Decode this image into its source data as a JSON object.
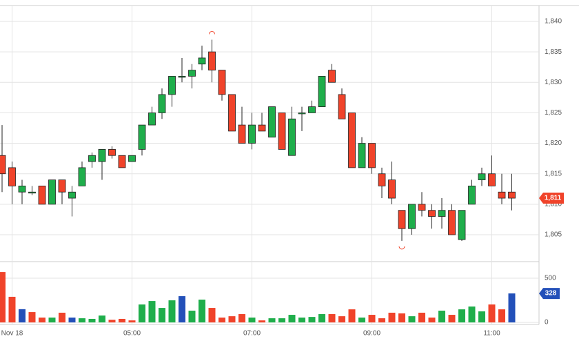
{
  "chart_data": [
    {
      "type": "candlestick",
      "categories": [
        null,
        "Nov 18",
        null,
        null,
        null,
        null,
        null,
        null,
        null,
        null,
        null,
        null,
        null,
        "05:00",
        null,
        null,
        null,
        null,
        null,
        null,
        null,
        null,
        null,
        null,
        null,
        "07:00",
        null,
        null,
        null,
        null,
        null,
        null,
        null,
        null,
        null,
        null,
        null,
        "09:00",
        null,
        null,
        null,
        null,
        null,
        null,
        null,
        null,
        null,
        null,
        null,
        "11:00",
        null,
        null
      ],
      "open": [
        1818,
        1816,
        1812,
        1812,
        1813,
        1810,
        1814,
        1811,
        1813,
        1817,
        1817,
        1819,
        1818,
        1817,
        1819,
        1823,
        1825,
        1828,
        1831,
        1831,
        1833,
        1835,
        1832,
        1828,
        1823,
        1820,
        1823,
        1821,
        1825,
        1818,
        1825,
        1825,
        1826,
        1832,
        1828,
        1825,
        1816,
        1820,
        1815,
        1814,
        1809,
        1806,
        1810,
        1809,
        1808,
        1809,
        1804.2,
        1810,
        1814,
        1815,
        1812,
        1812
      ],
      "high": [
        1823,
        1817,
        1814,
        1813,
        1813,
        1814,
        1814,
        1813,
        1817,
        1818.5,
        1819,
        1819.5,
        1818,
        1818,
        1823,
        1826,
        1829,
        1831,
        1834,
        1833,
        1836,
        1837,
        1832,
        1828,
        1826,
        1825,
        1825,
        1826,
        1825,
        1826,
        1826,
        1827,
        1831,
        1833,
        1829,
        1825,
        1821,
        1820,
        1816,
        1817,
        1809,
        1810,
        1812,
        1810,
        1811,
        1810,
        1809,
        1814,
        1816,
        1818,
        1815,
        1815
      ],
      "low": [
        1812,
        1810,
        1810,
        1811.5,
        1810,
        1810,
        1810,
        1808,
        1813,
        1816,
        1814,
        1817.5,
        1816,
        1817,
        1818,
        1823,
        1824,
        1826,
        1830,
        1829,
        1832,
        1830,
        1827,
        1822,
        1820,
        1819,
        1822,
        1821,
        1819,
        1818,
        1822,
        1825,
        1826,
        1830,
        1824,
        1816,
        1816,
        1815,
        1811,
        1810,
        1804,
        1805,
        1808,
        1806,
        1806,
        1805,
        1804,
        1810,
        1813,
        1813,
        1810,
        1809
      ],
      "close": [
        1815,
        1813,
        1813,
        1812,
        1810,
        1814,
        1812,
        1812,
        1816,
        1818,
        1819,
        1818,
        1816,
        1818,
        1823,
        1825,
        1828,
        1831,
        1831,
        1832,
        1834,
        1832,
        1828,
        1822,
        1820,
        1823,
        1822,
        1826,
        1819,
        1824,
        1825,
        1826,
        1831,
        1830,
        1824,
        1816,
        1820,
        1816,
        1813,
        1811,
        1806,
        1810,
        1809,
        1808,
        1809,
        1805,
        1809,
        1813,
        1815,
        1813,
        1811,
        1811
      ],
      "up_color": "#1fae4b",
      "down_color": "#f0432a",
      "ylim": [
        1800.7,
        1842.6
      ],
      "yticks": [
        {
          "value": 1805,
          "label": "1,805"
        },
        {
          "value": 1810,
          "label": "1,810"
        },
        {
          "value": 1815,
          "label": "1,815"
        },
        {
          "value": 1820,
          "label": "1,820"
        },
        {
          "value": 1825,
          "label": "1,825"
        },
        {
          "value": 1830,
          "label": "1,830"
        },
        {
          "value": 1835,
          "label": "1,835"
        },
        {
          "value": 1840,
          "label": "1,840"
        }
      ],
      "last": {
        "value": 1811,
        "label": "1,811"
      },
      "grid": true
    },
    {
      "type": "bar",
      "values": [
        570,
        290,
        150,
        117,
        55,
        55,
        110,
        55,
        47,
        40,
        78,
        30,
        40,
        23,
        203,
        242,
        164,
        250,
        297,
        133,
        258,
        164,
        55,
        70,
        94,
        55,
        23,
        47,
        47,
        86,
        55,
        62,
        94,
        94,
        70,
        148,
        55,
        86,
        47,
        110,
        102,
        70,
        110,
        55,
        133,
        86,
        148,
        180,
        125,
        203,
        148,
        328
      ],
      "colors": [
        "#f0432a",
        "#f0432a",
        "#2350b9",
        "#f0432a",
        "#f0432a",
        "#1fae4b",
        "#f0432a",
        "#2350b9",
        "#1fae4b",
        "#1fae4b",
        "#1fae4b",
        "#f0432a",
        "#f0432a",
        "#f0432a",
        "#1fae4b",
        "#1fae4b",
        "#1fae4b",
        "#1fae4b",
        "#2350b9",
        "#1fae4b",
        "#1fae4b",
        "#f0432a",
        "#f0432a",
        "#f0432a",
        "#f0432a",
        "#1fae4b",
        "#f0432a",
        "#1fae4b",
        "#1fae4b",
        "#1fae4b",
        "#1fae4b",
        "#1fae4b",
        "#1fae4b",
        "#f0432a",
        "#f0432a",
        "#f0432a",
        "#1fae4b",
        "#f0432a",
        "#f0432a",
        "#f0432a",
        "#f0432a",
        "#1fae4b",
        "#f0432a",
        "#f0432a",
        "#1fae4b",
        "#f0432a",
        "#1fae4b",
        "#1fae4b",
        "#1fae4b",
        "#f0432a",
        "#f0432a",
        "#2350b9"
      ],
      "ylim": [
        -23,
        680
      ],
      "yticks": [
        0,
        500
      ],
      "last": {
        "value": 328,
        "color": "#2350b9"
      },
      "grid": true
    }
  ]
}
